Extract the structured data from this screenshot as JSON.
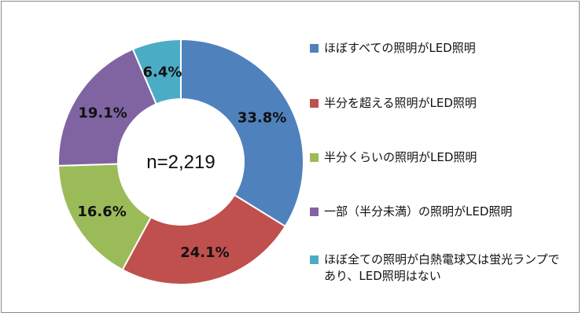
{
  "chart_data": {
    "type": "pie",
    "variant": "donut",
    "center_label": "n=2,219",
    "series": [
      {
        "values": [
          33.8,
          24.1,
          16.6,
          19.1,
          6.4
        ],
        "labels": [
          "33.8%",
          "24.1%",
          "16.6%",
          "19.1%",
          "6.4%"
        ]
      }
    ],
    "categories": [
      "ほぼすべての照明がLED照明",
      "半分を超える照明がLED照明",
      "半分くらいの照明がLED照明",
      "一部（半分未満）の照明がLED照明",
      "ほぼ全ての照明が白熱電球又は蛍光ランプであり、LED照明はない"
    ],
    "colors": [
      "#4F81BD",
      "#C0504D",
      "#9BBB59",
      "#8064A2",
      "#4BACC6"
    ],
    "legend_position": "right",
    "start_angle": "top",
    "direction": "clockwise"
  }
}
